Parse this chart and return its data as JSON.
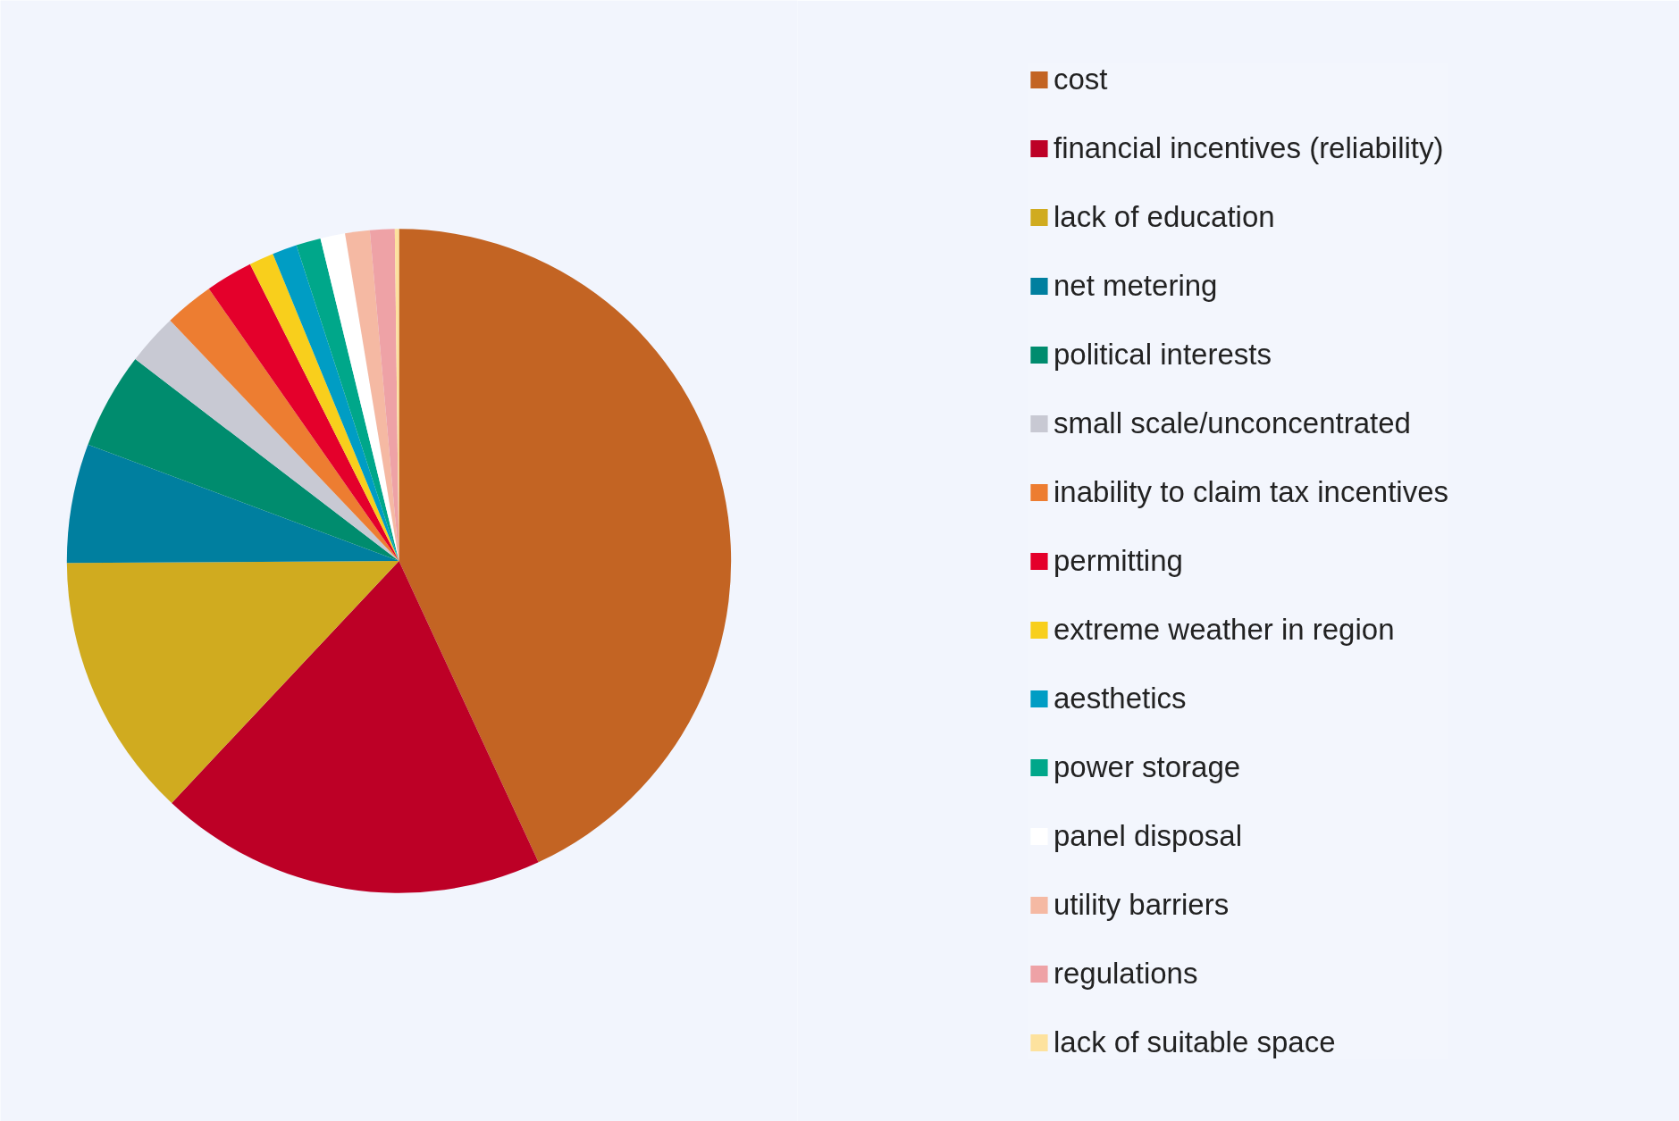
{
  "chart_data": {
    "type": "pie",
    "legend": "right",
    "categories": [
      "cost",
      "financial incentives (reliability)",
      "lack of education",
      "net metering",
      "political interests",
      "small scale/unconcentrated",
      "inability to claim tax incentives",
      "permitting",
      "extreme weather in region",
      "aesthetics",
      "power storage",
      "panel disposal",
      "utility barriers",
      "regulations",
      "lack of suitable space"
    ],
    "values": [
      43.1,
      18.9,
      12.9,
      5.8,
      4.7,
      2.5,
      2.4,
      2.3,
      1.2,
      1.2,
      1.2,
      1.2,
      1.2,
      1.2,
      0.2
    ],
    "colors": [
      "#c36423",
      "#bd0026",
      "#d0ab1f",
      "#007f9f",
      "#008c6e",
      "#c8c9d3",
      "#ed7d31",
      "#e4002b",
      "#f8cf1c",
      "#009dc4",
      "#00a78a",
      "#ffffff",
      "#f5b9a3",
      "#eea2a6",
      "#fde29e"
    ]
  }
}
